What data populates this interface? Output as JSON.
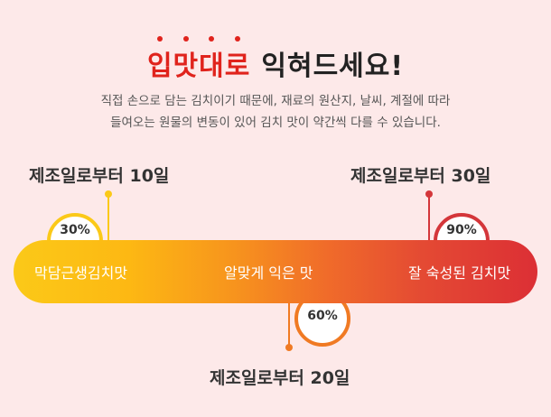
{
  "title": {
    "highlight_chars": [
      "입",
      "맛",
      "대",
      "로"
    ],
    "rest": "익혀드세요!"
  },
  "description": {
    "line1": "직접 손으로 담는 김치이기 때문에, 재료의 원산지, 날씨, 계절에 따라",
    "line2": "들여오는 원물의 변동이 있어 김치 맛이 약간씩 다를 수 있습니다."
  },
  "stages": {
    "first": {
      "label": "제조일로부터 10일",
      "percent": "30%"
    },
    "second": {
      "label": "제조일로부터 20일",
      "percent": "60%"
    },
    "third": {
      "label": "제조일로부터 30일",
      "percent": "90%"
    }
  },
  "bar": {
    "left_text": "막담근생김치맛",
    "middle_text": "알맞게 익은 맛",
    "right_text": "잘 숙성된 김치맛"
  },
  "colors": {
    "accent": "#e0231c",
    "yellow": "#fbc918",
    "orange": "#f07a23",
    "red": "#dc2f35"
  }
}
